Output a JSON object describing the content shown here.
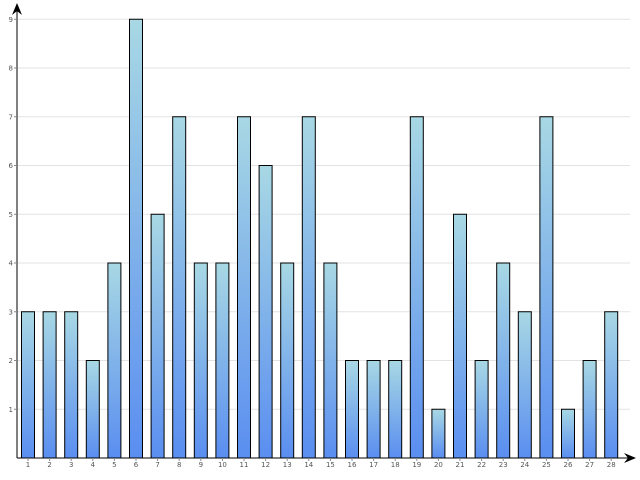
{
  "chart_data": {
    "type": "bar",
    "categories": [
      "1",
      "2",
      "3",
      "4",
      "5",
      "6",
      "7",
      "8",
      "9",
      "10",
      "11",
      "12",
      "13",
      "14",
      "15",
      "16",
      "17",
      "18",
      "19",
      "20",
      "21",
      "22",
      "23",
      "24",
      "25",
      "26",
      "27",
      "28"
    ],
    "values": [
      3,
      3,
      3,
      2,
      4,
      9,
      5,
      7,
      4,
      4,
      7,
      6,
      4,
      7,
      4,
      2,
      2,
      2,
      7,
      1,
      5,
      2,
      4,
      3,
      7,
      1,
      2,
      3
    ],
    "yticks": [
      "1",
      "2",
      "3",
      "4",
      "5",
      "6",
      "7",
      "8",
      "9"
    ],
    "ylim": [
      0,
      9
    ],
    "grid": true,
    "title": "",
    "xlabel": "",
    "ylabel": "",
    "colors": {
      "bar_top": "#a8d8e4",
      "bar_bottom": "#5a8ef0",
      "bar_stroke": "#000000",
      "grid": "#e3e3e3",
      "axis": "#000000"
    }
  }
}
